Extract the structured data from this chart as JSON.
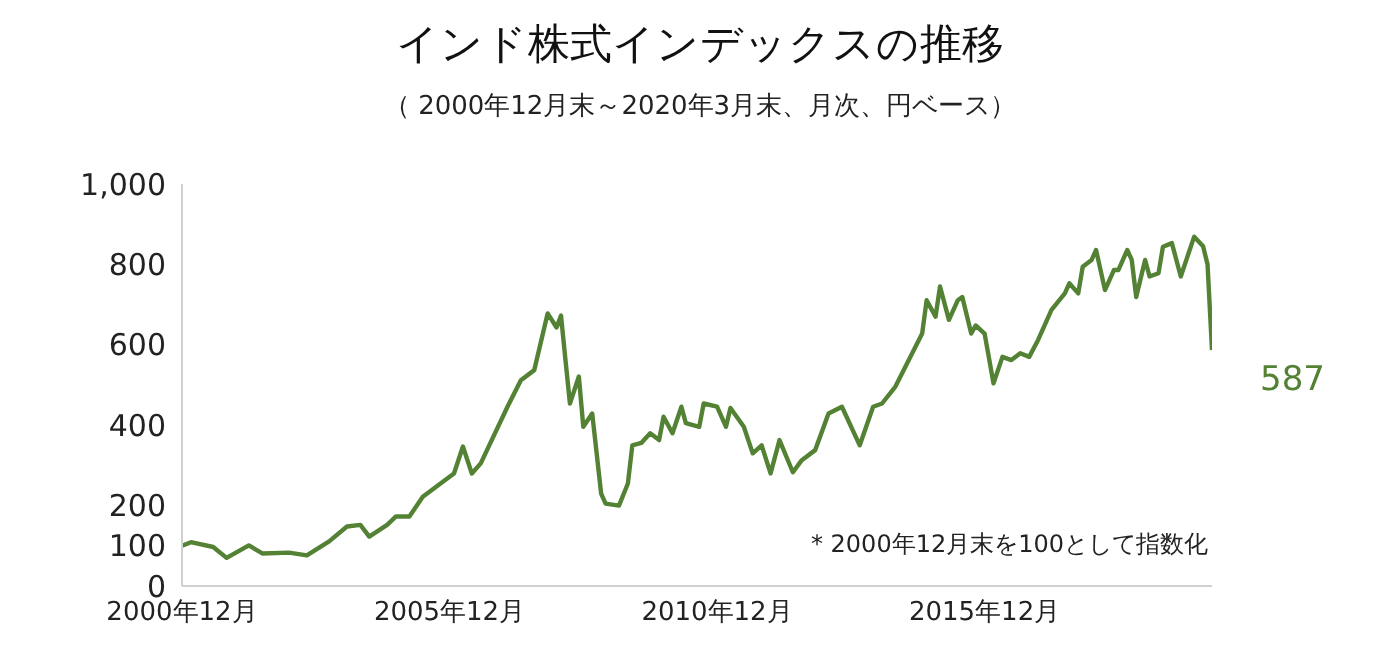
{
  "chart_data": {
    "type": "line",
    "title": "インド株式インデックスの推移",
    "subtitle": "（ 2000年12月末～2020年3月末、月次、円ベース）",
    "x": [
      "2000-12",
      "2001-02",
      "2001-07",
      "2001-10",
      "2002-03",
      "2002-06",
      "2002-12",
      "2003-04",
      "2003-09",
      "2004-01",
      "2004-04",
      "2004-06",
      "2004-10",
      "2004-12",
      "2005-03",
      "2005-06",
      "2005-09",
      "2006-01",
      "2006-03",
      "2006-05",
      "2006-07",
      "2007-01",
      "2007-04",
      "2007-07",
      "2007-10",
      "2007-12",
      "2008-01",
      "2008-02",
      "2008-03",
      "2008-05",
      "2008-06",
      "2008-08",
      "2008-10",
      "2008-11",
      "2009-02",
      "2009-04",
      "2009-05",
      "2009-07",
      "2009-09",
      "2009-11",
      "2009-12",
      "2010-02",
      "2010-04",
      "2010-05",
      "2010-08",
      "2010-09",
      "2010-12",
      "2011-02",
      "2011-03",
      "2011-06",
      "2011-08",
      "2011-10",
      "2011-12",
      "2012-02",
      "2012-05",
      "2012-07",
      "2012-10",
      "2013-01",
      "2013-04",
      "2013-08",
      "2013-11",
      "2014-01",
      "2014-04",
      "2014-07",
      "2014-10",
      "2014-11",
      "2015-01",
      "2015-02",
      "2015-04",
      "2015-06",
      "2015-07",
      "2015-09",
      "2015-10",
      "2015-12",
      "2016-02",
      "2016-04",
      "2016-06",
      "2016-08",
      "2016-10",
      "2016-12",
      "2017-03",
      "2017-06",
      "2017-07",
      "2017-09",
      "2017-10",
      "2017-12",
      "2018-01",
      "2018-03",
      "2018-05",
      "2018-06",
      "2018-08",
      "2018-09",
      "2018-10",
      "2018-12",
      "2019-01",
      "2019-03",
      "2019-04",
      "2019-06",
      "2019-08",
      "2019-11",
      "2020-01",
      "2020-02",
      "2020-03"
    ],
    "series": [
      {
        "color": "#548235",
        "values": [
          100,
          109,
          97,
          70,
          101,
          81,
          83,
          76,
          111,
          148,
          152,
          123,
          152,
          173,
          173,
          222,
          247,
          280,
          347,
          280,
          305,
          446,
          512,
          537,
          678,
          643,
          673,
          562,
          454,
          521,
          396,
          429,
          230,
          205,
          200,
          255,
          350,
          356,
          380,
          363,
          421,
          380,
          446,
          405,
          396,
          454,
          446,
          396,
          443,
          396,
          330,
          350,
          280,
          363,
          283,
          313,
          338,
          429,
          446,
          350,
          446,
          454,
          496,
          562,
          628,
          711,
          670,
          745,
          662,
          711,
          719,
          628,
          648,
          628,
          504,
          570,
          562,
          579,
          570,
          612,
          687,
          728,
          753,
          728,
          794,
          811,
          836,
          736,
          786,
          786,
          836,
          811,
          719,
          811,
          770,
          778,
          844,
          853,
          770,
          869,
          845,
          800,
          587
        ]
      }
    ],
    "xlim": [
      "2000-12",
      "2020-03"
    ],
    "xticks": [
      {
        "value": "2000-12",
        "label": "2000年12月"
      },
      {
        "value": "2005-12",
        "label": "2005年12月"
      },
      {
        "value": "2010-12",
        "label": "2010年12月"
      },
      {
        "value": "2015-12",
        "label": "2015年12月"
      }
    ],
    "ylim": [
      0,
      1000
    ],
    "yticks": [
      0,
      100,
      200,
      400,
      600,
      800,
      {
        "value": 1000,
        "label": "1,000"
      }
    ],
    "grid": false,
    "legend": false,
    "marker": "none",
    "line_style": "solid",
    "annotations": [
      {
        "text": "587",
        "x": "2020-03",
        "y": 587
      },
      "* 2000年12月末を100として指数化"
    ]
  }
}
